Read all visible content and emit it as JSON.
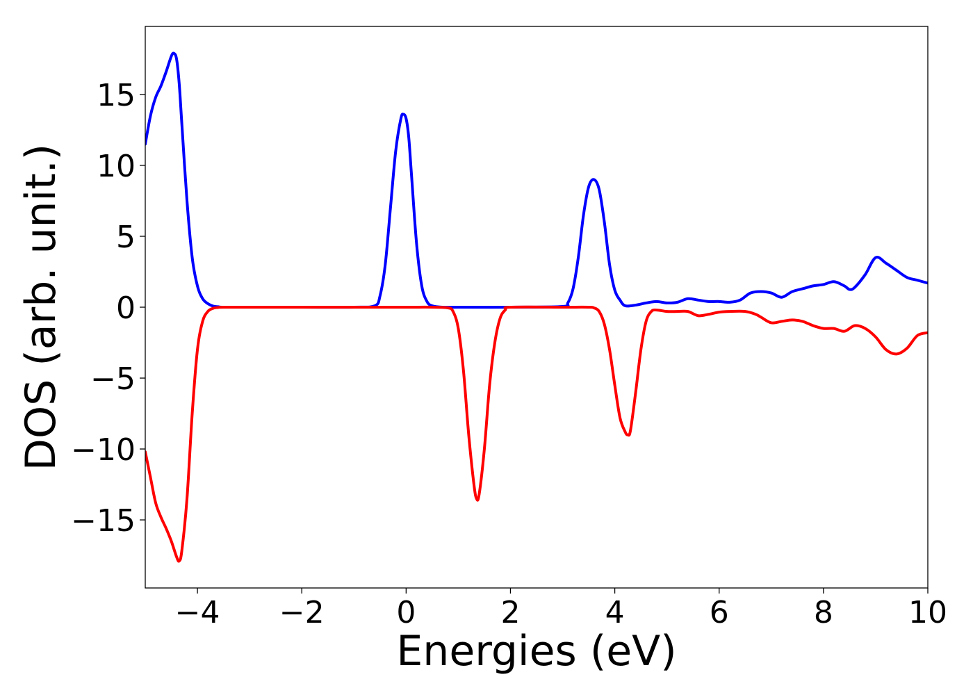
{
  "chart_data": {
    "type": "line",
    "title": "",
    "xlabel": "Energies (eV)",
    "ylabel": "DOS (arb. unit.)",
    "xlim": [
      -5,
      10
    ],
    "ylim": [
      -19.8,
      19.8
    ],
    "grid": false,
    "legend": "none",
    "x_ticks": [
      -4,
      -2,
      0,
      2,
      4,
      6,
      8,
      10
    ],
    "x_tick_labels": [
      "−4",
      "−2",
      "0",
      "2",
      "4",
      "6",
      "8",
      "10"
    ],
    "y_ticks": [
      15,
      10,
      5,
      0,
      -5,
      -10,
      -15
    ],
    "y_tick_labels": [
      "15",
      "10",
      "5",
      "0",
      "−5",
      "−10",
      "−15"
    ],
    "series": [
      {
        "color": "#0000ff",
        "x": [
          -5.0,
          -4.9,
          -4.8,
          -4.7,
          -4.6,
          -4.5,
          -4.45,
          -4.4,
          -4.35,
          -4.3,
          -4.2,
          -4.1,
          -4.0,
          -3.9,
          -3.8,
          -3.7,
          -3.6,
          -3.5,
          -3.0,
          -2.0,
          -1.0,
          -0.6,
          -0.5,
          -0.4,
          -0.3,
          -0.2,
          -0.1,
          -0.05,
          0.0,
          0.05,
          0.1,
          0.2,
          0.3,
          0.4,
          0.5,
          0.7,
          1.0,
          2.0,
          3.0,
          3.1,
          3.2,
          3.3,
          3.4,
          3.5,
          3.6,
          3.7,
          3.8,
          3.9,
          4.0,
          4.1,
          4.2,
          4.4,
          4.6,
          4.8,
          5.0,
          5.2,
          5.4,
          5.6,
          5.8,
          6.0,
          6.2,
          6.4,
          6.6,
          6.8,
          7.0,
          7.2,
          7.4,
          7.6,
          7.8,
          8.0,
          8.2,
          8.4,
          8.5,
          8.6,
          8.8,
          9.0,
          9.2,
          9.4,
          9.6,
          9.8,
          10.0
        ],
        "y": [
          11.5,
          13.5,
          14.8,
          15.6,
          16.6,
          17.7,
          17.9,
          17.5,
          15.8,
          13.0,
          7.5,
          3.5,
          1.5,
          0.6,
          0.25,
          0.08,
          0.03,
          0.0,
          0.0,
          0.0,
          0.0,
          0.1,
          0.8,
          3.0,
          7.0,
          11.0,
          13.3,
          13.6,
          13.3,
          12.0,
          9.5,
          4.5,
          1.5,
          0.4,
          0.1,
          0.0,
          0.0,
          0.0,
          0.05,
          0.3,
          1.3,
          3.5,
          6.5,
          8.5,
          9.0,
          8.3,
          6.0,
          3.0,
          1.2,
          0.5,
          0.1,
          0.15,
          0.3,
          0.4,
          0.3,
          0.35,
          0.6,
          0.5,
          0.4,
          0.4,
          0.35,
          0.5,
          1.0,
          1.1,
          1.0,
          0.7,
          1.1,
          1.3,
          1.5,
          1.6,
          1.8,
          1.5,
          1.25,
          1.4,
          2.3,
          3.5,
          3.1,
          2.6,
          2.1,
          1.9,
          1.7
        ]
      },
      {
        "color": "#ff0000",
        "x": [
          -5.0,
          -4.9,
          -4.8,
          -4.7,
          -4.6,
          -4.5,
          -4.4,
          -4.35,
          -4.3,
          -4.2,
          -4.1,
          -4.0,
          -3.9,
          -3.8,
          -3.7,
          -3.6,
          -3.5,
          -3.0,
          -2.0,
          -1.0,
          0.0,
          0.5,
          0.8,
          0.9,
          1.0,
          1.1,
          1.2,
          1.3,
          1.35,
          1.4,
          1.5,
          1.6,
          1.7,
          1.8,
          1.9,
          2.0,
          3.0,
          3.5,
          3.6,
          3.7,
          3.8,
          3.9,
          4.0,
          4.1,
          4.2,
          4.25,
          4.3,
          4.4,
          4.5,
          4.6,
          4.7,
          4.8,
          5.0,
          5.2,
          5.4,
          5.6,
          5.8,
          6.0,
          6.2,
          6.5,
          6.7,
          6.8,
          7.0,
          7.2,
          7.4,
          7.6,
          7.8,
          8.0,
          8.2,
          8.4,
          8.6,
          8.8,
          9.0,
          9.2,
          9.4,
          9.6,
          9.8,
          10.0
        ],
        "y": [
          -10.2,
          -12.0,
          -13.8,
          -14.8,
          -15.6,
          -16.5,
          -17.6,
          -17.9,
          -17.2,
          -13.5,
          -7.5,
          -3.0,
          -1.0,
          -0.3,
          -0.08,
          -0.02,
          0.0,
          0.0,
          0.0,
          0.0,
          0.0,
          0.0,
          -0.05,
          -0.3,
          -1.5,
          -4.5,
          -9.0,
          -12.5,
          -13.5,
          -13.2,
          -10.0,
          -5.5,
          -2.5,
          -0.8,
          -0.2,
          0.0,
          0.0,
          0.0,
          -0.05,
          -0.3,
          -1.2,
          -3.0,
          -5.5,
          -7.8,
          -8.8,
          -9.0,
          -8.7,
          -6.0,
          -3.0,
          -1.0,
          -0.3,
          -0.2,
          -0.3,
          -0.3,
          -0.3,
          -0.6,
          -0.5,
          -0.35,
          -0.3,
          -0.3,
          -0.5,
          -0.7,
          -1.1,
          -1.0,
          -0.9,
          -1.0,
          -1.3,
          -1.5,
          -1.5,
          -1.7,
          -1.3,
          -1.5,
          -2.1,
          -3.0,
          -3.3,
          -2.9,
          -2.0,
          -1.8
        ]
      }
    ]
  }
}
